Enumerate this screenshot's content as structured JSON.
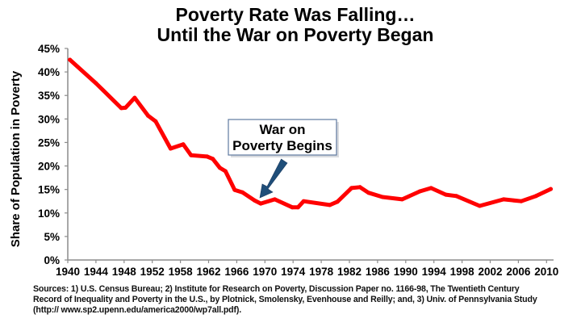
{
  "colors": {
    "line": "#ff0000",
    "axis": "#8c8c8c",
    "arrow": "#1f4e79",
    "callout_border": "#5f7aa0"
  },
  "chart_data": {
    "type": "line",
    "title": [
      "Poverty Rate Was Falling…",
      "Until the War on Poverty Began"
    ],
    "xlabel": "",
    "ylabel": "Share of Population in Poverty",
    "x_tick_labels": [
      "1940",
      "1944",
      "1948",
      "1952",
      "1958",
      "1962",
      "1966",
      "1970",
      "1974",
      "1978",
      "1982",
      "1986",
      "1990",
      "1994",
      "1998",
      "2002",
      "2006",
      "2010"
    ],
    "y_tick_labels": [
      "0%",
      "5%",
      "10%",
      "15%",
      "20%",
      "25%",
      "30%",
      "35%",
      "40%",
      "45%"
    ],
    "y_ticks": [
      0,
      5,
      10,
      15,
      20,
      25,
      30,
      35,
      40,
      45
    ],
    "ylim": [
      0,
      45
    ],
    "grid": false,
    "series": [
      {
        "name": "Poverty rate",
        "points": [
          {
            "year": 1940.3,
            "value": 42.6
          },
          {
            "year": 1944.0,
            "value": 37.6
          },
          {
            "year": 1947.6,
            "value": 32.3
          },
          {
            "year": 1948.2,
            "value": 32.4
          },
          {
            "year": 1949.5,
            "value": 34.5
          },
          {
            "year": 1951.4,
            "value": 30.7
          },
          {
            "year": 1952.7,
            "value": 29.5
          },
          {
            "year": 1955.9,
            "value": 23.7
          },
          {
            "year": 1958.4,
            "value": 24.6
          },
          {
            "year": 1959.5,
            "value": 22.3
          },
          {
            "year": 1961.8,
            "value": 22.0
          },
          {
            "year": 1962.6,
            "value": 21.5
          },
          {
            "year": 1963.6,
            "value": 19.6
          },
          {
            "year": 1964.4,
            "value": 18.9
          },
          {
            "year": 1965.7,
            "value": 14.9
          },
          {
            "year": 1966.8,
            "value": 14.4
          },
          {
            "year": 1968.5,
            "value": 12.7
          },
          {
            "year": 1969.4,
            "value": 12.0
          },
          {
            "year": 1971.4,
            "value": 12.9
          },
          {
            "year": 1973.9,
            "value": 11.2
          },
          {
            "year": 1974.7,
            "value": 11.2
          },
          {
            "year": 1975.5,
            "value": 12.5
          },
          {
            "year": 1979.2,
            "value": 11.7
          },
          {
            "year": 1980.3,
            "value": 12.4
          },
          {
            "year": 1982.3,
            "value": 15.3
          },
          {
            "year": 1983.5,
            "value": 15.5
          },
          {
            "year": 1984.7,
            "value": 14.3
          },
          {
            "year": 1986.7,
            "value": 13.4
          },
          {
            "year": 1989.5,
            "value": 12.9
          },
          {
            "year": 1992.0,
            "value": 14.6
          },
          {
            "year": 1993.6,
            "value": 15.3
          },
          {
            "year": 1995.7,
            "value": 13.9
          },
          {
            "year": 1997.2,
            "value": 13.6
          },
          {
            "year": 2000.5,
            "value": 11.5
          },
          {
            "year": 2003.9,
            "value": 12.9
          },
          {
            "year": 2006.4,
            "value": 12.5
          },
          {
            "year": 2008.5,
            "value": 13.6
          },
          {
            "year": 2010.6,
            "value": 15.1
          }
        ]
      }
    ],
    "annotations": [
      {
        "text": [
          "War on",
          "Poverty Begins"
        ],
        "points_to_year": 1969.4,
        "points_to_value": 12.0
      }
    ]
  },
  "sources": "Sources: 1) U.S. Census Bureau; 2) Institute for Research on Poverty, Discussion Paper no. 1166-98, The Twentieth Century Record of Inequality and Poverty in the U.S.,  by Plotnick, Smolensky, Evenhouse and Reilly; and, 3) Univ. of Pennsylvania Study (http:// www.sp2.upenn.edu/america2000/wp7all.pdf)."
}
